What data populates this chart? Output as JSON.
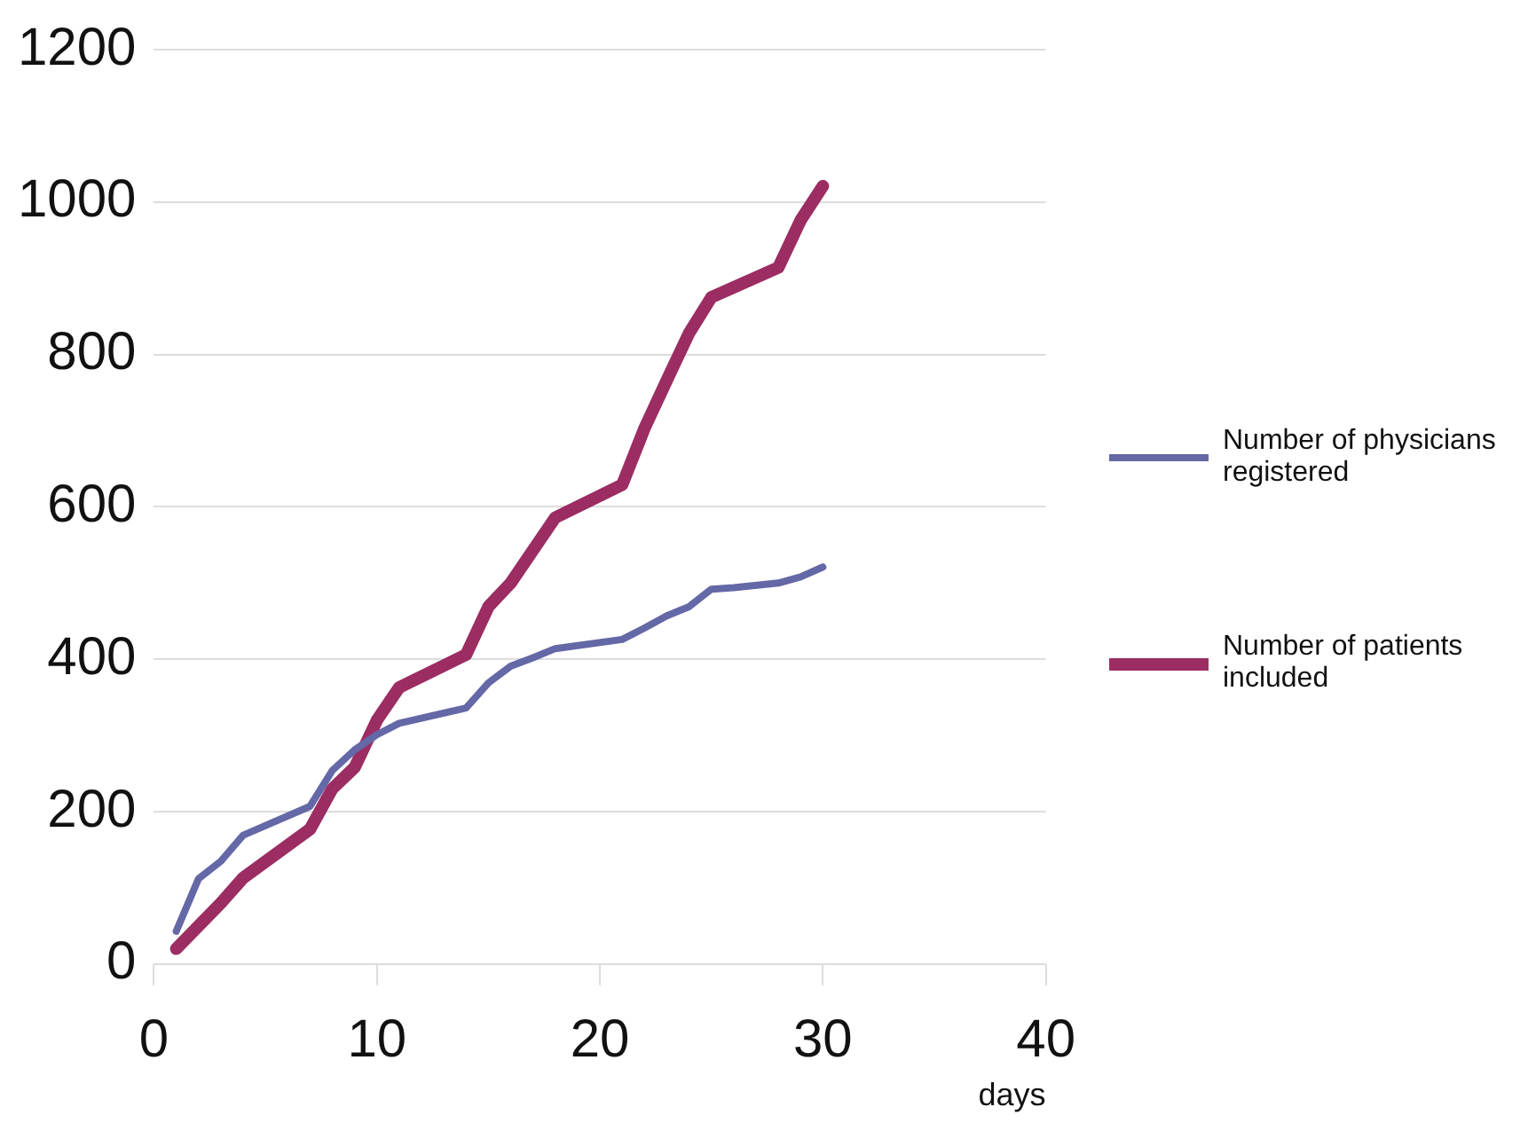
{
  "chart_data": {
    "type": "line",
    "xlabel": "days",
    "xlim": [
      0,
      40
    ],
    "xticks": [
      0,
      10,
      20,
      30,
      40
    ],
    "ylim": [
      0,
      1200
    ],
    "yticks": [
      0,
      200,
      400,
      600,
      800,
      1000,
      1200
    ],
    "grid": "y",
    "legend": "right",
    "marker": "none",
    "line_style": "solid",
    "series": [
      {
        "name": "Number of physicians registered",
        "color": "#6468a6",
        "x": [
          1,
          2,
          3,
          4,
          7,
          8,
          9,
          10,
          11,
          14,
          15,
          16,
          17,
          18,
          21,
          22,
          23,
          24,
          25,
          26,
          28,
          29,
          30
        ],
        "values": [
          43,
          112,
          135,
          169,
          207,
          254,
          281,
          301,
          316,
          336,
          369,
          391,
          402,
          414,
          426,
          441,
          457,
          469,
          492,
          494,
          500,
          508,
          521
        ]
      },
      {
        "name": "Number of patients included",
        "color": "#9b2d62",
        "x": [
          1,
          2,
          3,
          4,
          7,
          8,
          9,
          10,
          11,
          14,
          15,
          16,
          18,
          21,
          22,
          23,
          24,
          25,
          28,
          29,
          30
        ],
        "values": [
          20,
          50,
          80,
          113,
          177,
          230,
          258,
          320,
          363,
          406,
          469,
          500,
          586,
          629,
          703,
          766,
          828,
          875,
          914,
          976,
          1021
        ]
      }
    ]
  }
}
